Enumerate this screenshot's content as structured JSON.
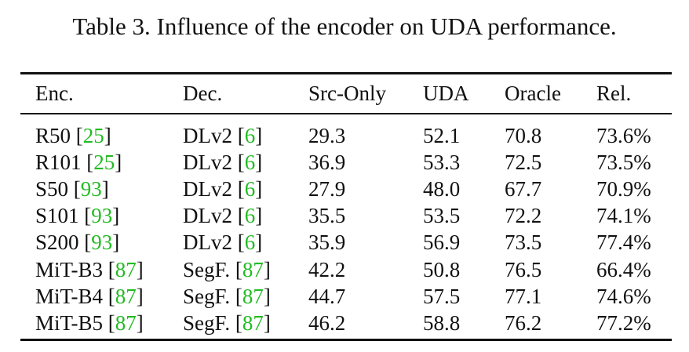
{
  "caption": "Table 3. Influence of the encoder on UDA performance.",
  "columns": [
    "Enc.",
    "Dec.",
    "Src-Only",
    "UDA",
    "Oracle",
    "Rel."
  ],
  "rows": [
    {
      "enc": "R50",
      "enc_ref": "25",
      "dec": "DLv2",
      "dec_ref": "6",
      "src": "29.3",
      "uda": "52.1",
      "oracle": "70.8",
      "rel": "73.6%"
    },
    {
      "enc": "R101",
      "enc_ref": "25",
      "dec": "DLv2",
      "dec_ref": "6",
      "src": "36.9",
      "uda": "53.3",
      "oracle": "72.5",
      "rel": "73.5%"
    },
    {
      "enc": "S50",
      "enc_ref": "93",
      "dec": "DLv2",
      "dec_ref": "6",
      "src": "27.9",
      "uda": "48.0",
      "oracle": "67.7",
      "rel": "70.9%"
    },
    {
      "enc": "S101",
      "enc_ref": "93",
      "dec": "DLv2",
      "dec_ref": "6",
      "src": "35.5",
      "uda": "53.5",
      "oracle": "72.2",
      "rel": "74.1%"
    },
    {
      "enc": "S200",
      "enc_ref": "93",
      "dec": "DLv2",
      "dec_ref": "6",
      "src": "35.9",
      "uda": "56.9",
      "oracle": "73.5",
      "rel": "77.4%"
    },
    {
      "enc": "MiT-B3",
      "enc_ref": "87",
      "dec": "SegF.",
      "dec_ref": "87",
      "src": "42.2",
      "uda": "50.8",
      "oracle": "76.5",
      "rel": "66.4%"
    },
    {
      "enc": "MiT-B4",
      "enc_ref": "87",
      "dec": "SegF.",
      "dec_ref": "87",
      "src": "44.7",
      "uda": "57.5",
      "oracle": "77.1",
      "rel": "74.6%"
    },
    {
      "enc": "MiT-B5",
      "enc_ref": "87",
      "dec": "SegF.",
      "dec_ref": "87",
      "src": "46.2",
      "uda": "58.8",
      "oracle": "76.2",
      "rel": "77.2%"
    }
  ],
  "colors": {
    "text": "#111111",
    "citation": "#22bb22"
  }
}
